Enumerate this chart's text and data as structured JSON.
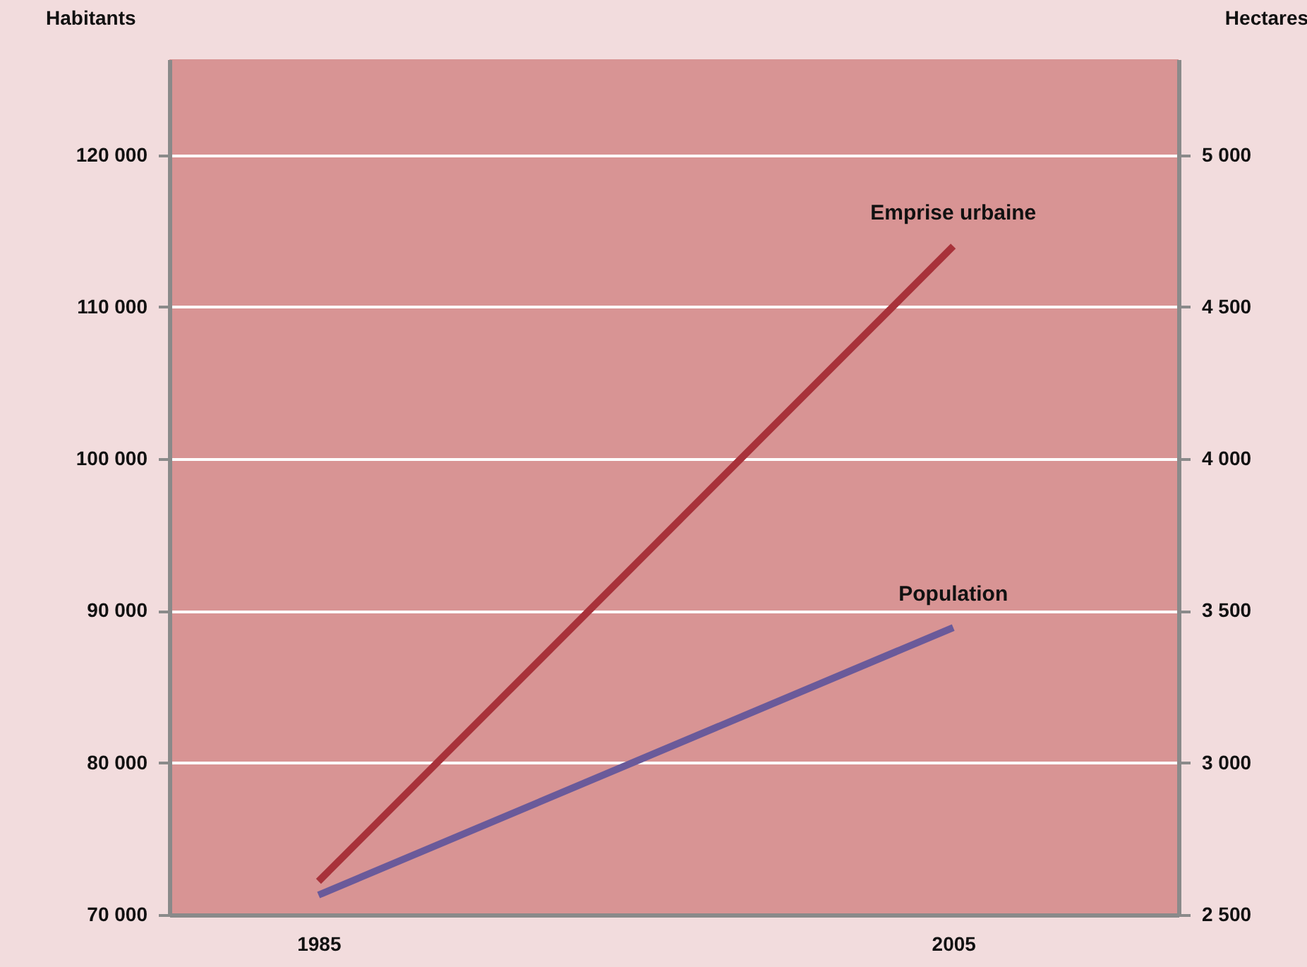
{
  "chart_data": {
    "type": "line",
    "ylabel": "Habitants",
    "y2label": "Hectares",
    "x": [
      1985,
      2005
    ],
    "xlim": [
      1980.3,
      2012.1
    ],
    "xticks": [
      1985,
      2005
    ],
    "ylim": [
      70000,
      126300
    ],
    "yticks": [
      {
        "value": 70000,
        "label": "70 000"
      },
      {
        "value": 80000,
        "label": "80 000"
      },
      {
        "value": 90000,
        "label": "90 000"
      },
      {
        "value": 100000,
        "label": "100 000"
      },
      {
        "value": 110000,
        "label": "110 000"
      },
      {
        "value": 120000,
        "label": "120 000"
      }
    ],
    "y2lim": [
      2500,
      5315
    ],
    "y2ticks": [
      {
        "value": 2500,
        "label": "2 500"
      },
      {
        "value": 3000,
        "label": "3 000"
      },
      {
        "value": 3500,
        "label": "3 500"
      },
      {
        "value": 4000,
        "label": "4 000"
      },
      {
        "value": 4500,
        "label": "4 500"
      },
      {
        "value": 5000,
        "label": "5 000"
      }
    ],
    "series": [
      {
        "name": "Emprise urbaine",
        "color": "#a8323a",
        "values": [
          2610,
          4700
        ],
        "axis": "y2"
      },
      {
        "name": "Population",
        "color": "#6a5a9a",
        "values": [
          71300,
          88900
        ]
      }
    ],
    "grid": "y"
  }
}
